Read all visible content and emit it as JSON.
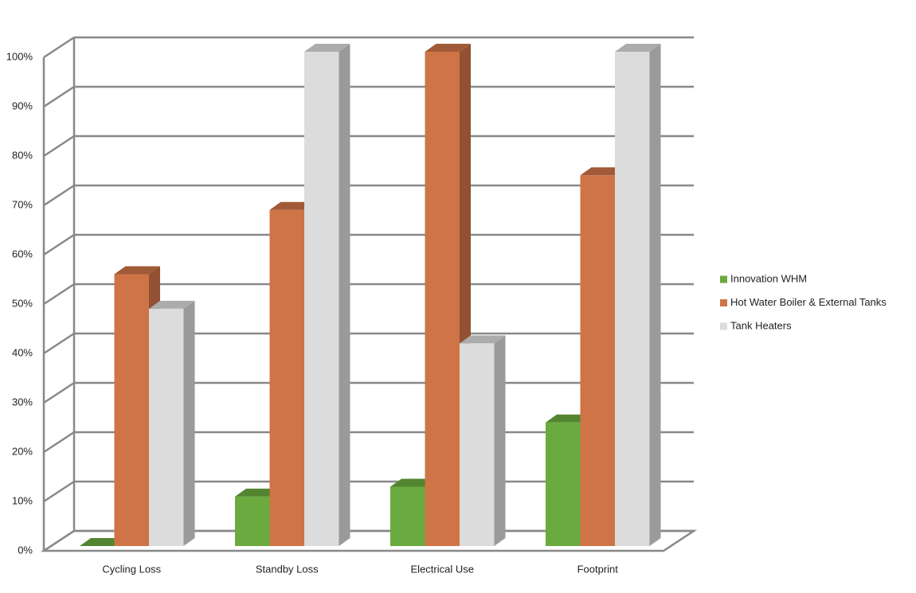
{
  "chart_data": {
    "type": "bar3d",
    "categories": [
      "Cycling Loss",
      "Standby Loss",
      "Electrical Use",
      "Footprint"
    ],
    "series": [
      {
        "name": "Innovation WHM",
        "color": "#6aaa3e",
        "values": [
          0,
          10,
          12,
          25
        ]
      },
      {
        "name": "Hot Water Boiler & External Tanks",
        "color": "#cf7447",
        "values": [
          55,
          68,
          100,
          75
        ]
      },
      {
        "name": "Tank Heaters",
        "color": "#dcdcdc",
        "values": [
          48,
          100,
          41,
          100
        ]
      }
    ],
    "ylim": [
      0,
      100
    ],
    "yticks": [
      {
        "value": 0,
        "label": "0%"
      },
      {
        "value": 10,
        "label": "10%"
      },
      {
        "value": 20,
        "label": "20%"
      },
      {
        "value": 30,
        "label": "30%"
      },
      {
        "value": 40,
        "label": "40%"
      },
      {
        "value": 50,
        "label": "50%"
      },
      {
        "value": 60,
        "label": "60%"
      },
      {
        "value": 70,
        "label": "70%"
      },
      {
        "value": 80,
        "label": "80%"
      },
      {
        "value": 90,
        "label": "90%"
      },
      {
        "value": 100,
        "label": "100%"
      }
    ],
    "grid": true,
    "legend": "right"
  }
}
